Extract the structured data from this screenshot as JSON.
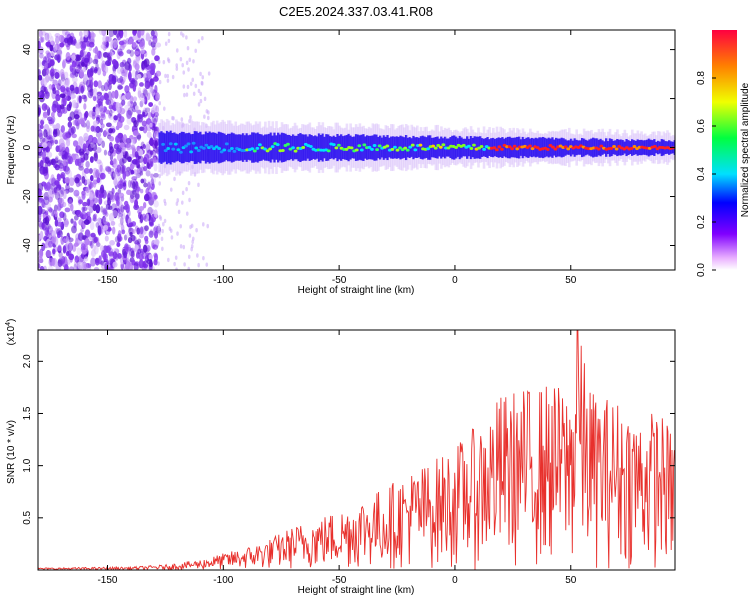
{
  "title": "C2E5.2024.337.03.41.R08",
  "colors": {
    "snr_line": "#e8302c",
    "axis": "#000000",
    "spectrogram_noise": "#6a1de0",
    "ridge": "#ff2020"
  },
  "chart_data": [
    {
      "type": "heatmap",
      "title": "C2E5.2024.337.03.41.R08",
      "xlabel": "Height of straight line (km)",
      "ylabel": "Frequency (Hz)",
      "xlim": [
        -180,
        95
      ],
      "ylim": [
        -50,
        48
      ],
      "x_ticks": [
        -150,
        -100,
        -50,
        0,
        50
      ],
      "x_tick_labels": [
        "-150",
        "-100",
        "-50",
        "0",
        "50"
      ],
      "y_ticks": [
        -40,
        -20,
        0,
        20,
        40
      ],
      "y_tick_labels": [
        "-40",
        "-20",
        "0",
        "20",
        "40"
      ],
      "noise_region_x": [
        -180,
        -128
      ],
      "signal_band_center_hz": 0,
      "colorbar": {
        "label": "Normalized spectral amplitude",
        "range": [
          0,
          1
        ],
        "ticks": [
          0,
          0.2,
          0.4,
          0.6,
          0.8
        ],
        "tick_labels": [
          "0.0",
          "0.2",
          "0.4",
          "0.6",
          "0.8"
        ]
      }
    },
    {
      "type": "line",
      "xlabel": "Height of straight line (km)",
      "ylabel": "SNR (10 * v/v)",
      "y_multiplier_label": "(x10",
      "y_multiplier_exp": "4",
      "xlim": [
        -180,
        95
      ],
      "ylim": [
        0,
        2.3
      ],
      "x_ticks": [
        -150,
        -100,
        -50,
        0,
        50
      ],
      "x_tick_labels": [
        "-150",
        "-100",
        "-50",
        "0",
        "50"
      ],
      "y_ticks": [
        0.5,
        1.0,
        1.5,
        2.0
      ],
      "y_tick_labels": [
        "0.5",
        "1.0",
        "1.5",
        "2.0"
      ],
      "envelope": {
        "x": [
          -180,
          -140,
          -125,
          -110,
          -100,
          -90,
          -80,
          -70,
          -60,
          -50,
          -40,
          -30,
          -20,
          -10,
          0,
          10,
          20,
          30,
          40,
          50,
          53,
          60,
          70,
          80,
          88,
          92,
          95
        ],
        "y": [
          0.02,
          0.03,
          0.05,
          0.1,
          0.16,
          0.22,
          0.3,
          0.42,
          0.5,
          0.58,
          0.7,
          0.8,
          0.95,
          1.05,
          1.2,
          1.4,
          1.7,
          1.75,
          1.8,
          1.75,
          2.3,
          1.7,
          1.65,
          1.5,
          1.55,
          1.4,
          1.3
        ]
      }
    }
  ]
}
